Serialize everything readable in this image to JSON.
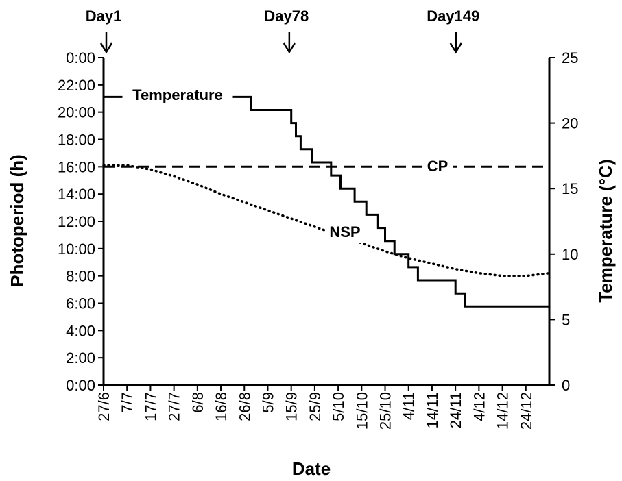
{
  "chart_data": {
    "type": "line",
    "title": "",
    "xlabel": "Date",
    "ylabel_left": "Photoperiod (h)",
    "ylabel_right": "Temperature (°C)",
    "x_tick_labels": [
      "27/6",
      "7/7",
      "17/7",
      "27/7",
      "6/8",
      "16/8",
      "26/8",
      "5/9",
      "15/9",
      "25/9",
      "5/10",
      "15/10",
      "25/10",
      "4/11",
      "14/11",
      "24/11",
      "4/12",
      "14/12",
      "24/12"
    ],
    "x_range_days": [
      0,
      190
    ],
    "x_tick_day_offsets": [
      0,
      10,
      20,
      30,
      40,
      50,
      60,
      70,
      80,
      90,
      100,
      110,
      120,
      130,
      140,
      150,
      160,
      170,
      180
    ],
    "y_left_tick_labels": [
      "0:00",
      "2:00",
      "4:00",
      "6:00",
      "8:00",
      "10:00",
      "12:00",
      "14:00",
      "16:00",
      "18:00",
      "20:00",
      "22:00",
      "0:00"
    ],
    "y_left_range_hours": [
      0,
      24
    ],
    "y_right_tick_labels": [
      "0",
      "5",
      "10",
      "15",
      "20",
      "25"
    ],
    "y_right_range": [
      0,
      25
    ],
    "grid": false,
    "series": [
      {
        "name": "Temperature",
        "axis": "right",
        "style": "solid",
        "step": true,
        "points": [
          [
            0,
            22
          ],
          [
            4,
            22
          ],
          [
            60,
            22
          ],
          [
            63,
            21
          ],
          [
            78,
            21
          ],
          [
            80,
            20
          ],
          [
            82,
            19
          ],
          [
            84,
            18
          ],
          [
            89,
            17
          ],
          [
            97,
            16
          ],
          [
            101,
            15
          ],
          [
            107,
            14
          ],
          [
            112,
            13
          ],
          [
            117,
            12
          ],
          [
            120,
            11
          ],
          [
            124,
            10
          ],
          [
            130,
            9
          ],
          [
            134,
            8
          ],
          [
            140,
            8
          ],
          [
            150,
            7
          ],
          [
            154,
            6
          ],
          [
            190,
            6
          ]
        ]
      },
      {
        "name": "CP",
        "axis": "left",
        "style": "dashed",
        "points": [
          [
            0,
            16
          ],
          [
            190,
            16
          ]
        ]
      },
      {
        "name": "NSP",
        "axis": "left",
        "style": "dotted",
        "points": [
          [
            0,
            16.1
          ],
          [
            10,
            16.1
          ],
          [
            20,
            15.8
          ],
          [
            30,
            15.3
          ],
          [
            40,
            14.7
          ],
          [
            50,
            14.0
          ],
          [
            60,
            13.4
          ],
          [
            70,
            12.8
          ],
          [
            80,
            12.2
          ],
          [
            90,
            11.6
          ],
          [
            100,
            11.0
          ],
          [
            110,
            10.4
          ],
          [
            120,
            9.8
          ],
          [
            130,
            9.3
          ],
          [
            140,
            8.9
          ],
          [
            150,
            8.5
          ],
          [
            160,
            8.2
          ],
          [
            170,
            8.0
          ],
          [
            180,
            8.0
          ],
          [
            190,
            8.2
          ]
        ]
      }
    ],
    "annotations": [
      {
        "label": "Day1",
        "day": 0
      },
      {
        "label": "Day78",
        "day": 78
      },
      {
        "label": "Day149",
        "day": 149
      }
    ]
  }
}
